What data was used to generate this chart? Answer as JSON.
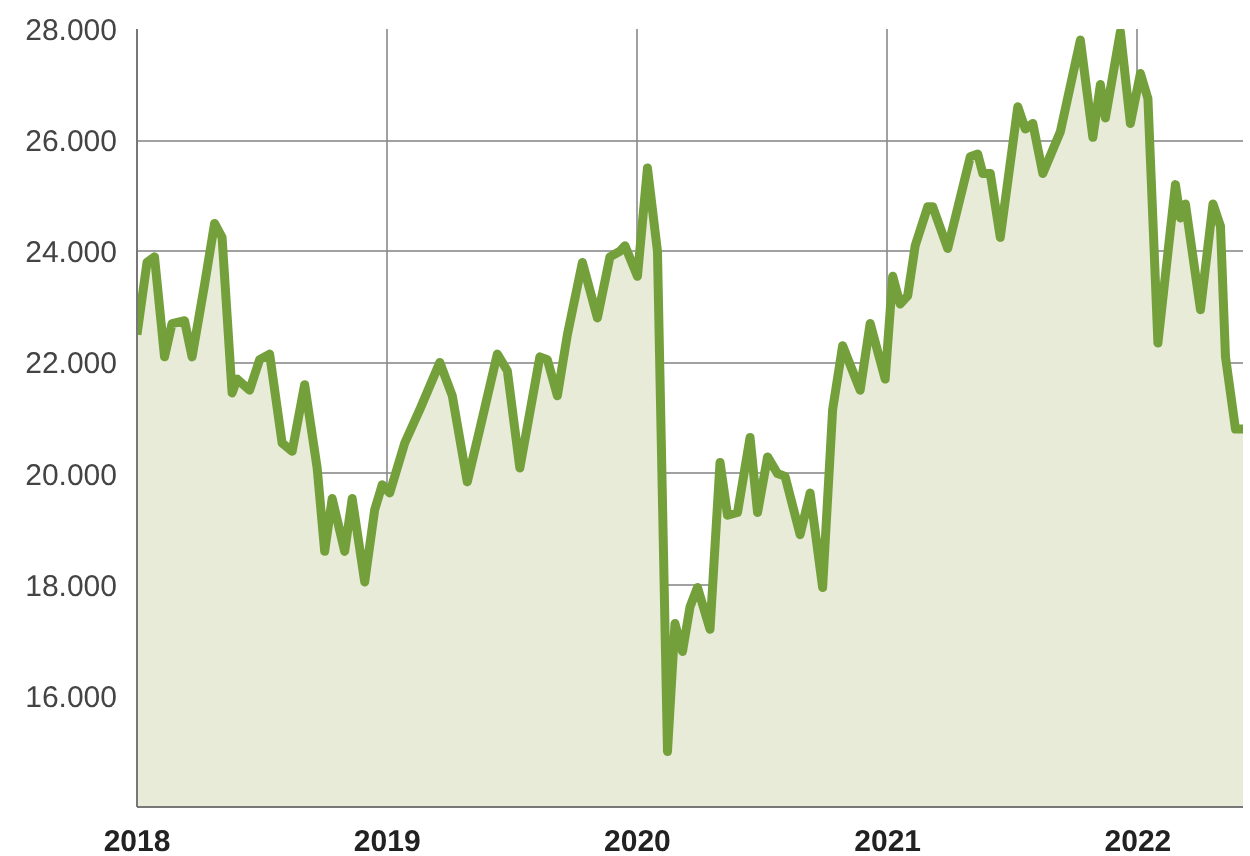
{
  "chart_data": {
    "type": "area",
    "color": "#74a03c",
    "x": [
      2018.0,
      2018.04,
      2018.07,
      2018.11,
      2018.14,
      2018.19,
      2018.22,
      2018.27,
      2018.31,
      2018.34,
      2018.38,
      2018.4,
      2018.45,
      2018.49,
      2018.53,
      2018.58,
      2018.62,
      2018.67,
      2018.72,
      2018.75,
      2018.78,
      2018.83,
      2018.86,
      2018.91,
      2018.95,
      2018.98,
      2019.01,
      2019.07,
      2019.13,
      2019.21,
      2019.26,
      2019.32,
      2019.37,
      2019.44,
      2019.48,
      2019.53,
      2019.61,
      2019.64,
      2019.68,
      2019.72,
      2019.78,
      2019.84,
      2019.89,
      2019.93,
      2019.95,
      2020.0,
      2020.04,
      2020.08,
      2020.12,
      2020.15,
      2020.18,
      2020.21,
      2020.24,
      2020.29,
      2020.33,
      2020.36,
      2020.4,
      2020.45,
      2020.48,
      2020.52,
      2020.56,
      2020.59,
      2020.61,
      2020.65,
      2020.69,
      2020.74,
      2020.78,
      2020.82,
      2020.89,
      2020.93,
      2020.99,
      2021.02,
      2021.05,
      2021.08,
      2021.11,
      2021.16,
      2021.18,
      2021.24,
      2021.33,
      2021.36,
      2021.38,
      2021.41,
      2021.45,
      2021.52,
      2021.55,
      2021.58,
      2021.62,
      2021.69,
      2021.77,
      2021.82,
      2021.85,
      2021.87,
      2021.93,
      2021.97,
      2022.01,
      2022.04,
      2022.08,
      2022.15,
      2022.17,
      2022.19,
      2022.25,
      2022.3,
      2022.33,
      2022.35,
      2022.39,
      2022.42
    ],
    "values": [
      22500,
      23800,
      23900,
      22100,
      22700,
      22750,
      22100,
      23400,
      24500,
      24250,
      21450,
      21700,
      21500,
      22050,
      22150,
      20550,
      20400,
      21600,
      20100,
      18600,
      19550,
      18600,
      19550,
      18050,
      19350,
      19800,
      19650,
      20550,
      21150,
      22000,
      21400,
      19850,
      20800,
      22150,
      21850,
      20100,
      22100,
      22050,
      21400,
      22500,
      23800,
      22800,
      23900,
      24000,
      24100,
      23550,
      25500,
      24000,
      15000,
      17300,
      16800,
      17600,
      17950,
      17200,
      20200,
      19250,
      19300,
      20650,
      19300,
      20300,
      20000,
      19950,
      19600,
      18900,
      19650,
      17950,
      21150,
      22300,
      21500,
      22700,
      21700,
      23550,
      23050,
      23200,
      24100,
      24800,
      24800,
      24050,
      25700,
      25750,
      25400,
      25400,
      24250,
      26600,
      26200,
      26300,
      25400,
      26150,
      27800,
      26050,
      27000,
      26400,
      27950,
      26300,
      27200,
      26750,
      22350,
      25200,
      24600,
      24850,
      22950,
      24850,
      24450,
      22100,
      20800,
      20800
    ],
    "xlim": [
      2018,
      2022.42
    ],
    "ylim": [
      14000,
      28000
    ],
    "xticks": [
      2018,
      2019,
      2020,
      2021,
      2022
    ],
    "yticks": [
      {
        "value": 14000,
        "label": null
      },
      {
        "value": 16000,
        "label": "16.000"
      },
      {
        "value": 18000,
        "label": "18.000"
      },
      {
        "value": 20000,
        "label": "20.000"
      },
      {
        "value": 22000,
        "label": "22.000"
      },
      {
        "value": 24000,
        "label": "24.000"
      },
      {
        "value": 26000,
        "label": "26.000"
      },
      {
        "value": 28000,
        "label": "28.000"
      }
    ],
    "grid": true,
    "line_style": "solid",
    "marker": "none"
  }
}
